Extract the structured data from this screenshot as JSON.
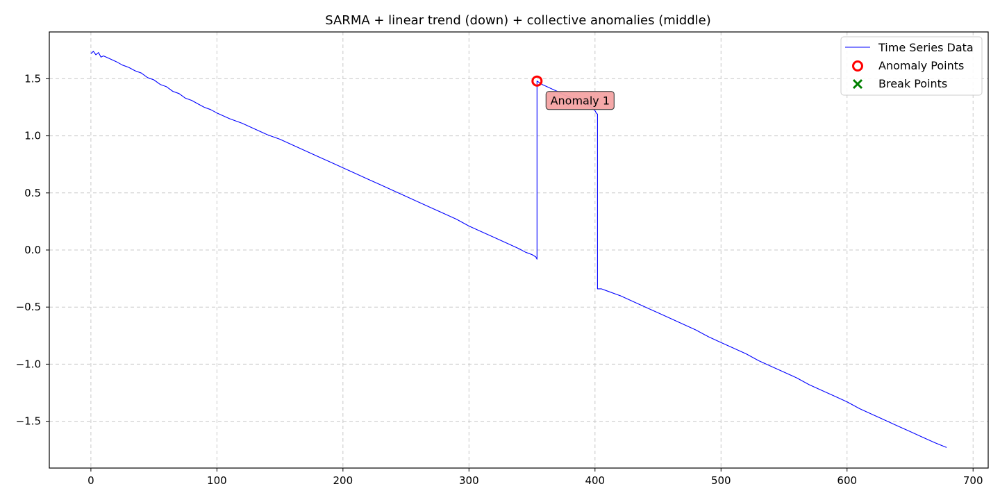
{
  "chart_data": {
    "type": "line",
    "title": "SARMA + linear trend (down) + collective anomalies (middle)",
    "xlabel": "",
    "ylabel": "",
    "xlim": [
      -33,
      712
    ],
    "ylim": [
      -1.91,
      1.91
    ],
    "x_ticks": [
      0,
      100,
      200,
      300,
      400,
      500,
      600,
      700
    ],
    "y_ticks": [
      1.5,
      1.0,
      0.5,
      0.0,
      -0.5,
      -1.0,
      -1.5
    ],
    "x_tick_labels": [
      "0",
      "100",
      "200",
      "300",
      "400",
      "500",
      "600",
      "700"
    ],
    "y_tick_labels": [
      "1.5",
      "1.0",
      "0.5",
      "0.0",
      "−0.5",
      "−1.0",
      "−1.5"
    ],
    "grid": true,
    "legend_position": "top-right",
    "series": [
      {
        "name": "Time Series Data",
        "color": "#0000ff",
        "style": "line",
        "x": [
          0,
          2,
          4,
          6,
          8,
          10,
          14,
          20,
          25,
          30,
          35,
          40,
          45,
          50,
          55,
          60,
          65,
          70,
          75,
          80,
          85,
          90,
          95,
          100,
          110,
          120,
          130,
          140,
          150,
          160,
          170,
          180,
          190,
          200,
          210,
          220,
          230,
          240,
          250,
          260,
          270,
          280,
          290,
          300,
          310,
          320,
          330,
          340,
          345,
          350,
          353,
          354,
          354,
          358,
          362,
          366,
          370,
          375,
          380,
          385,
          390,
          395,
          398,
          400,
          401,
          402,
          402,
          405,
          410,
          420,
          430,
          440,
          450,
          460,
          470,
          480,
          490,
          500,
          510,
          520,
          530,
          540,
          550,
          560,
          570,
          580,
          590,
          600,
          610,
          620,
          630,
          640,
          650,
          660,
          670,
          679
        ],
        "y": [
          1.72,
          1.74,
          1.71,
          1.73,
          1.69,
          1.7,
          1.68,
          1.65,
          1.62,
          1.6,
          1.57,
          1.55,
          1.51,
          1.49,
          1.45,
          1.43,
          1.39,
          1.37,
          1.33,
          1.31,
          1.28,
          1.25,
          1.23,
          1.2,
          1.15,
          1.11,
          1.06,
          1.01,
          0.97,
          0.92,
          0.87,
          0.82,
          0.77,
          0.72,
          0.67,
          0.62,
          0.57,
          0.52,
          0.47,
          0.42,
          0.37,
          0.32,
          0.27,
          0.21,
          0.16,
          0.11,
          0.06,
          0.01,
          -0.02,
          -0.04,
          -0.06,
          -0.08,
          1.48,
          1.45,
          1.43,
          1.41,
          1.39,
          1.36,
          1.34,
          1.31,
          1.29,
          1.27,
          1.24,
          1.22,
          1.2,
          1.19,
          -0.34,
          -0.34,
          -0.36,
          -0.4,
          -0.45,
          -0.5,
          -0.55,
          -0.6,
          -0.65,
          -0.7,
          -0.76,
          -0.81,
          -0.86,
          -0.91,
          -0.97,
          -1.02,
          -1.07,
          -1.12,
          -1.18,
          -1.23,
          -1.28,
          -1.33,
          -1.39,
          -1.44,
          -1.49,
          -1.54,
          -1.59,
          -1.64,
          -1.69,
          -1.73
        ]
      },
      {
        "name": "Anomaly Points",
        "color": "#ff0000",
        "style": "hollow-circle",
        "x": [
          354
        ],
        "y": [
          1.48
        ]
      },
      {
        "name": "Break Points",
        "color": "#008000",
        "style": "x-marker",
        "x": [],
        "y": []
      }
    ],
    "annotations": [
      {
        "text": "Anomaly 1",
        "x": 354,
        "y": 1.48,
        "box_color": "#f4a3a3"
      }
    ]
  }
}
